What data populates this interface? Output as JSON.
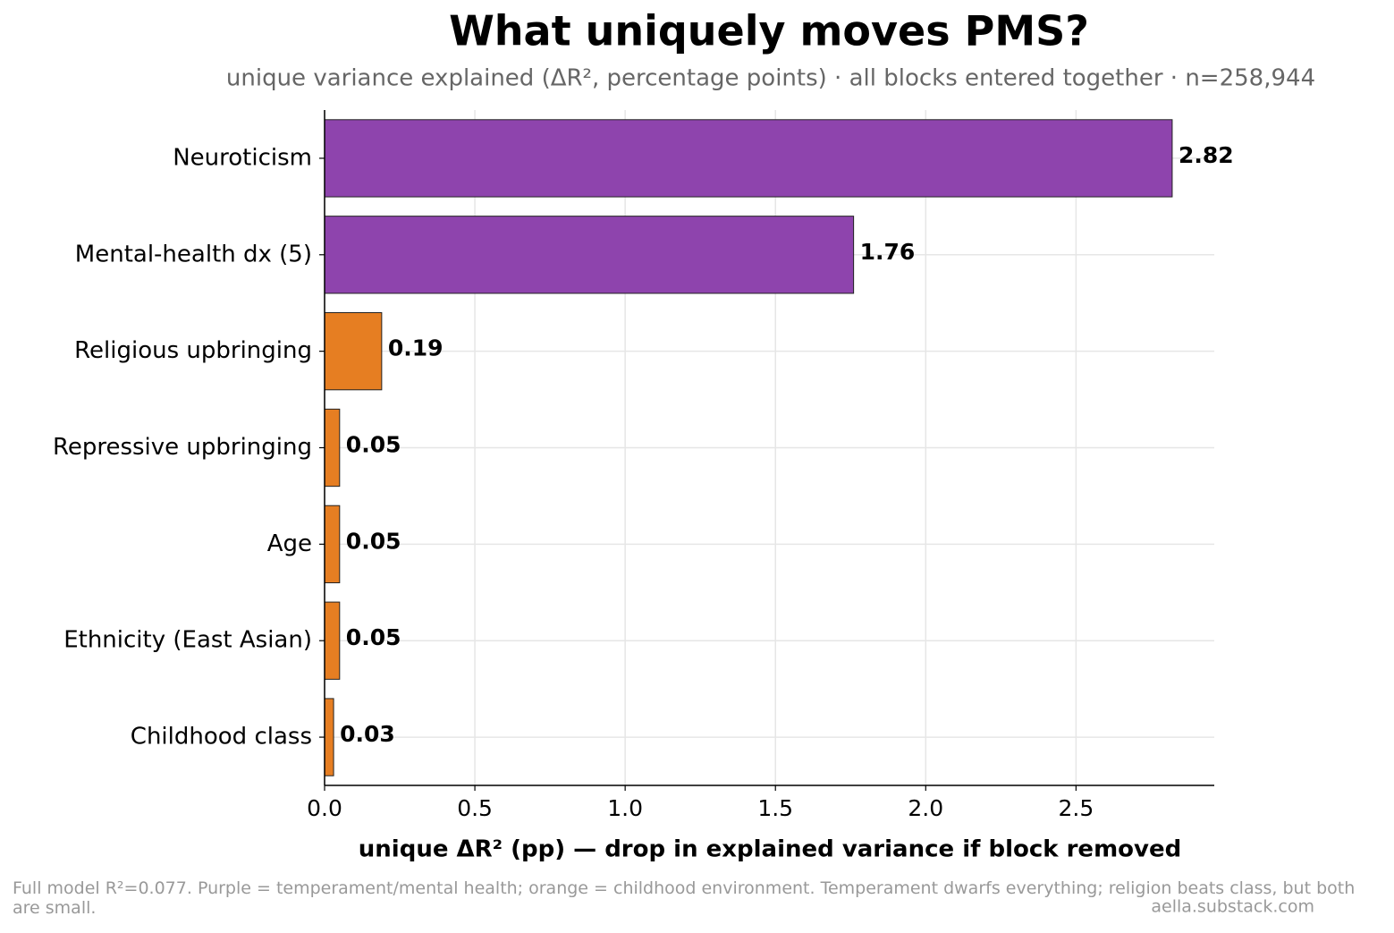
{
  "chart_data": {
    "type": "barh",
    "title": "What uniquely moves PMS?",
    "subtitle": "unique variance explained (ΔR², percentage points) · all blocks entered together · n=258,944",
    "x_label": "unique ΔR² (pp) — drop in explained variance if block removed",
    "categories": [
      "Neuroticism",
      "Mental-health dx (5)",
      "Religious upbringing",
      "Repressive upbringing",
      "Age",
      "Ethnicity (East Asian)",
      "Childhood class"
    ],
    "values": [
      2.82,
      1.76,
      0.19,
      0.05,
      0.05,
      0.05,
      0.03
    ],
    "colors": [
      "#8e44ad",
      "#8e44ad",
      "#e67e22",
      "#e67e22",
      "#e67e22",
      "#e67e22",
      "#e67e22"
    ],
    "xlim": [
      0,
      2.96
    ],
    "xticks": [
      {
        "value": 0,
        "label": "0.0"
      },
      0.5,
      {
        "value": 1,
        "label": "1.0"
      },
      1.5,
      {
        "value": 2,
        "label": "2.0"
      },
      2.5
    ],
    "grid": true,
    "footnote": "Full model R²=0.077. Purple = temperament/mental health; orange = childhood environment. Temperament dwarfs everything; religion beats class, but both are small.",
    "credit": "aella.substack.com"
  }
}
